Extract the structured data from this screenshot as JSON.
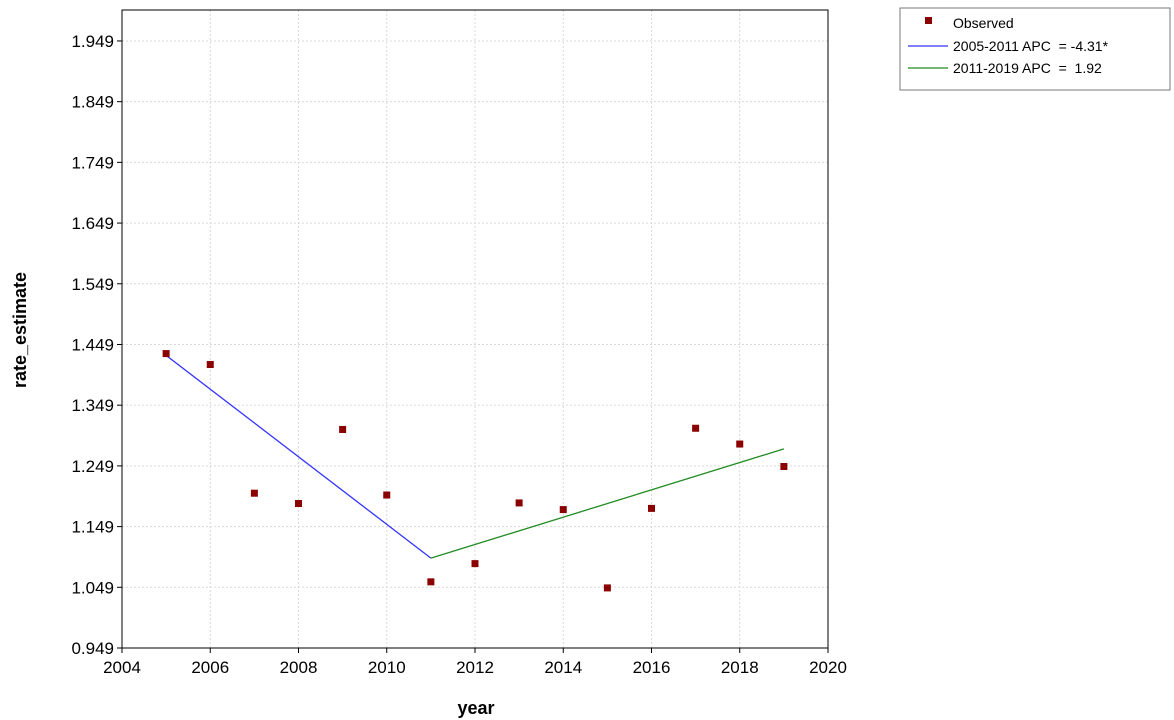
{
  "chart_data": {
    "type": "line",
    "xlabel": "year",
    "ylabel": "rate_estimate",
    "xlim": [
      2004,
      2020
    ],
    "ylim": [
      0.949,
      2.0
    ],
    "x_ticks": [
      2004,
      2006,
      2008,
      2010,
      2012,
      2014,
      2016,
      2018,
      2020
    ],
    "y_ticks": [
      0.949,
      1.049,
      1.149,
      1.249,
      1.349,
      1.449,
      1.549,
      1.649,
      1.749,
      1.849,
      1.949
    ],
    "y_tick_labels": [
      "0.949",
      "1.049",
      "1.149",
      "1.249",
      "1.349",
      "1.449",
      "1.549",
      "1.649",
      "1.749",
      "1.849",
      "1.949"
    ],
    "x_tick_labels": [
      "2004",
      "2006",
      "2008",
      "2010",
      "2012",
      "2014",
      "2016",
      "2018",
      "2020"
    ],
    "grid": true,
    "legend_position": "top-right outside",
    "observed": {
      "name": "Observed",
      "color": "#8b0000",
      "x": [
        2005,
        2006,
        2007,
        2008,
        2009,
        2010,
        2011,
        2012,
        2013,
        2014,
        2015,
        2016,
        2017,
        2018,
        2019
      ],
      "y": [
        1.434,
        1.416,
        1.204,
        1.187,
        1.309,
        1.201,
        1.058,
        1.088,
        1.188,
        1.177,
        1.048,
        1.179,
        1.311,
        1.285,
        1.248
      ]
    },
    "series": [
      {
        "name": "2005-2011 APC  = -4.31*",
        "color": "#3333ff",
        "x": [
          2005,
          2011
        ],
        "y": [
          1.431,
          1.097
        ]
      },
      {
        "name": "2011-2019 APC  =  1.92",
        "color": "#228b22",
        "x": [
          2011,
          2019
        ],
        "y": [
          1.097,
          1.277
        ]
      }
    ]
  }
}
